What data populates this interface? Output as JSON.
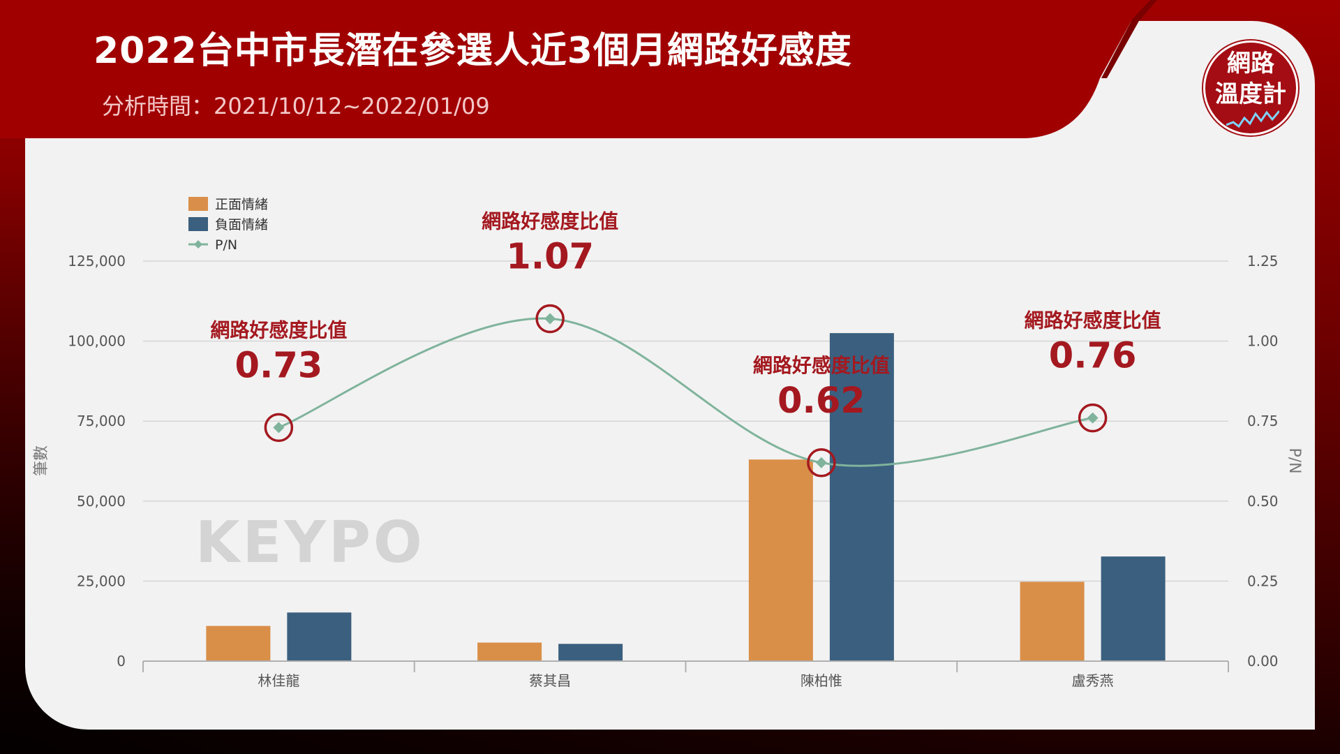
{
  "header": {
    "title": "2022台中市長潛在參選人近3個月網路好感度",
    "subtitle": "分析時間：2021/10/12~2022/01/09",
    "badge_line1": "網路",
    "badge_line2": "溫度計"
  },
  "watermark": {
    "text": "KEYPO"
  },
  "colors": {
    "positive": "#d98f48",
    "negative": "#3b5f7e",
    "line": "#7fb39c",
    "accent": "#a3191f",
    "brand_red": "#a10000"
  },
  "chart_data": {
    "type": "bar",
    "categories": [
      "林佳龍",
      "蔡其昌",
      "陳柏惟",
      "盧秀燕"
    ],
    "series": [
      {
        "name": "正面情緒",
        "type": "bar",
        "values": [
          11000,
          5800,
          63000,
          24800
        ]
      },
      {
        "name": "負面情緒",
        "type": "bar",
        "values": [
          15200,
          5400,
          102500,
          32700
        ]
      },
      {
        "name": "P/N",
        "type": "line",
        "axis": "right",
        "values": [
          0.73,
          1.07,
          0.62,
          0.76
        ]
      }
    ],
    "annotations": [
      {
        "label": "網路好感度比值",
        "value": "0.73"
      },
      {
        "label": "網路好感度比值",
        "value": "1.07"
      },
      {
        "label": "網路好感度比值",
        "value": "0.62"
      },
      {
        "label": "網路好感度比值",
        "value": "0.76"
      }
    ],
    "ylabel": "筆數",
    "y2label": "P/N",
    "ylim": [
      0,
      125000
    ],
    "y2lim": [
      0,
      1.25
    ],
    "yticks": [
      "0",
      "25,000",
      "50,000",
      "75,000",
      "100,000",
      "125,000"
    ],
    "y2ticks": [
      "0.00",
      "0.25",
      "0.50",
      "0.75",
      "1.00",
      "1.25"
    ],
    "grid": true,
    "legend_position": "top-left"
  }
}
